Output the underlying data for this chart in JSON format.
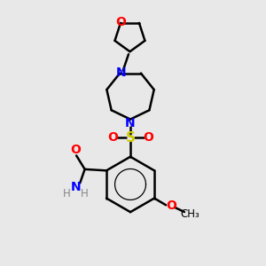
{
  "bg_color": "#e8e8e8",
  "bond_color": "#000000",
  "bond_width": 1.8,
  "colors": {
    "N": "#0000ff",
    "O": "#ff0000",
    "S": "#cccc00",
    "H": "#888888",
    "C": "#000000"
  },
  "xlim": [
    0,
    10
  ],
  "ylim": [
    0,
    10
  ],
  "figsize": [
    3.0,
    3.0
  ],
  "dpi": 100
}
